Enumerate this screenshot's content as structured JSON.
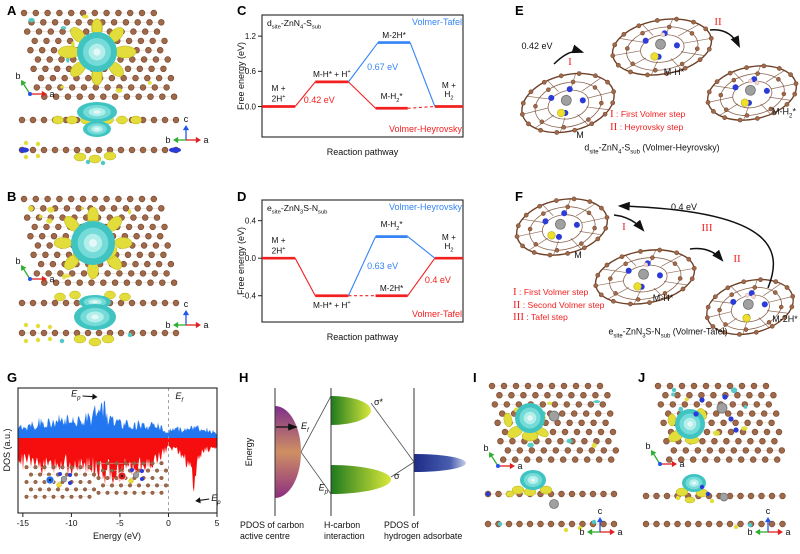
{
  "palette": {
    "red": "#f32020",
    "blue": "#3584f7",
    "dos_up": "#2277f0",
    "dos_down": "#f60d0d",
    "carbon": "#a06a4a",
    "carbon_dark": "#6f4028",
    "nitrogen": "#2a3bd8",
    "sulfur": "#eede2e",
    "zinc": "#a0a0a0",
    "hydrogen": "#f3d7d2",
    "iso_yellow": "#e3dd3b",
    "iso_cyan": "#4fc9c6",
    "axis_a": "#e02020",
    "axis_b": "#2fae2f",
    "axis_c": "#2255ee",
    "highlight_blue": "#1e6ef5",
    "highlight_red": "#e41c1c"
  },
  "axis_labels": {
    "a": "a",
    "b": "b",
    "c": "c"
  },
  "panels": {
    "A": {
      "letter": "A"
    },
    "B": {
      "letter": "B"
    },
    "C": {
      "letter": "C"
    },
    "D": {
      "letter": "D"
    },
    "E": {
      "letter": "E",
      "energy_label": "0.42 eV",
      "step_numerals": [
        "I",
        "II"
      ],
      "mol_labels": [
        "M",
        "M-H*",
        "M-H~2~*"
      ],
      "legend": [
        {
          "num": "I",
          "text": "First Volmer step"
        },
        {
          "num": "II",
          "text": "Heyrovsky step"
        }
      ],
      "caption_rich": "d~site~-ZnN~4~-S~sub~ (Volmer-Heyrovsky)"
    },
    "F": {
      "letter": "F",
      "energy_label": "0.4 eV",
      "step_numerals": [
        "I",
        "II",
        "III"
      ],
      "mol_labels": [
        "M",
        "M-H*",
        "M-2H*"
      ],
      "legend": [
        {
          "num": "I",
          "text": "First Volmer step"
        },
        {
          "num": "II",
          "text": "Second Volmer step"
        },
        {
          "num": "III",
          "text": "Tafel step"
        }
      ],
      "caption_rich": "e~site~-ZnN~3~S-N~sub~ (Volmer-Tafel)"
    },
    "G": {
      "letter": "G"
    },
    "H": {
      "letter": "H",
      "energy_axis_label": "Energy",
      "ef_rich": "E~f~",
      "ep_rich": "E~p~",
      "sigma_star": "σ*",
      "sigma": "σ",
      "col_labels": [
        "PDOS of carbon\nactive centre",
        "H-carbon\ninteraction",
        "PDOS of\nhydrogen adsorbate"
      ]
    },
    "I": {
      "letter": "I"
    },
    "J": {
      "letter": "J"
    }
  },
  "chart_data": [
    {
      "id": "C",
      "type": "line",
      "subtype": "reaction-energy",
      "title_rich": "d~site~-ZnN~4~-S~sub~",
      "xlabel": "Reaction pathway",
      "ylabel": "Free energy (eV)",
      "ylim": [
        -0.52,
        1.56
      ],
      "yticks": [
        {
          "v": 0.0,
          "label": "0.0"
        },
        {
          "v": 0.6,
          "label": "0.6"
        },
        {
          "v": 1.2,
          "label": "1.2"
        }
      ],
      "slots": [
        [
          0.0,
          0.165
        ],
        [
          0.265,
          0.43
        ],
        [
          0.565,
          0.725
        ],
        [
          0.86,
          1.0
        ]
      ],
      "levels": [
        {
          "key": "r0",
          "slot": 0,
          "value": 0.0,
          "color": "red",
          "label": "M +\n2H^+^",
          "lpos": "above"
        },
        {
          "key": "r1",
          "slot": 1,
          "value": 0.42,
          "color": "red",
          "label": "M-H* + H^+^",
          "lpos": "above"
        },
        {
          "key": "r2",
          "slot": 2,
          "value": -0.03,
          "color": "red",
          "label": "M-H~2~*",
          "lpos": "above"
        },
        {
          "key": "b2",
          "slot": 2,
          "value": 1.09,
          "color": "blue",
          "label": "M-2H*",
          "lpos": "above",
          "xshift": 0.012
        },
        {
          "key": "r3",
          "slot": 3,
          "value": 0.0,
          "color": "red",
          "label": "M +\nH~2~",
          "lpos": "above"
        }
      ],
      "connections": [
        {
          "from": "r0",
          "to": "r1",
          "color": "red",
          "style": "solid"
        },
        {
          "from": "r1",
          "to": "r2",
          "color": "red",
          "style": "solid"
        },
        {
          "from": "r2",
          "to": "r3",
          "color": "red",
          "style": "dashed"
        },
        {
          "from": "r1",
          "to": "b2",
          "color": "blue",
          "style": "solid"
        },
        {
          "from": "b2",
          "to": "r3",
          "color": "blue",
          "style": "solid"
        }
      ],
      "annotations": [
        {
          "text": "0.42 eV",
          "color": "red",
          "x": 0.285,
          "y": 0.7
        },
        {
          "text": "0.67 eV",
          "color": "blue",
          "x": 0.6,
          "y": 0.43
        },
        {
          "text": "Volmer-Tafel",
          "color": "blue",
          "x": 0.995,
          "y": 0.055,
          "anchor": "end"
        },
        {
          "text": "Volmer-Heyrovsky",
          "color": "red",
          "x": 0.995,
          "y": 0.935,
          "anchor": "end"
        }
      ]
    },
    {
      "id": "D",
      "type": "line",
      "subtype": "reaction-energy",
      "title_rich": "e~site~-ZnN~3~S-N~sub~",
      "xlabel": "Reaction pathway",
      "ylabel": "Free energy (eV)",
      "ylim": [
        -0.68,
        0.62
      ],
      "yticks": [
        {
          "v": -0.4,
          "label": "-0.4"
        },
        {
          "v": 0.0,
          "label": "0.0"
        },
        {
          "v": 0.4,
          "label": "0.4"
        }
      ],
      "slots": [
        [
          0.0,
          0.165
        ],
        [
          0.265,
          0.43
        ],
        [
          0.565,
          0.725
        ],
        [
          0.86,
          1.0
        ]
      ],
      "levels": [
        {
          "key": "r0",
          "slot": 0,
          "value": 0.0,
          "color": "red",
          "label": "M +\n2H^+^",
          "lpos": "above"
        },
        {
          "key": "r1",
          "slot": 1,
          "value": -0.4,
          "color": "red",
          "label": "M-H* + H^+^",
          "lpos": "below"
        },
        {
          "key": "b2",
          "slot": 2,
          "value": 0.23,
          "color": "blue",
          "label": "M-H~2~*",
          "lpos": "above"
        },
        {
          "key": "r2",
          "slot": 2,
          "value": -0.4,
          "color": "red",
          "label": "M-2H*",
          "lpos": "above"
        },
        {
          "key": "r3",
          "slot": 3,
          "value": 0.0,
          "color": "red",
          "label": "M +\nH~2~",
          "lpos": "above"
        }
      ],
      "connections": [
        {
          "from": "r0",
          "to": "r1",
          "color": "red",
          "style": "solid"
        },
        {
          "from": "r1",
          "to": "r2",
          "color": "red",
          "style": "dashed"
        },
        {
          "from": "r2",
          "to": "r3",
          "color": "red",
          "style": "solid"
        },
        {
          "from": "r1",
          "to": "b2",
          "color": "blue",
          "style": "solid"
        },
        {
          "from": "b2",
          "to": "r3",
          "color": "blue",
          "style": "solid"
        }
      ],
      "annotations": [
        {
          "text": "0.63 eV",
          "color": "blue",
          "x": 0.6,
          "y": 0.545
        },
        {
          "text": "0.4 eV",
          "color": "red",
          "x": 0.875,
          "y": 0.655
        },
        {
          "text": "Volmer-Heyrovsky",
          "color": "blue",
          "x": 0.995,
          "y": 0.055,
          "anchor": "end"
        },
        {
          "text": "Volmer-Tafel",
          "color": "red",
          "x": 0.995,
          "y": 0.935,
          "anchor": "end"
        }
      ]
    },
    {
      "id": "G",
      "type": "area",
      "subtype": "dos",
      "xlabel": "Energy (eV)",
      "ylabel": "DOS (a.u.)",
      "xlim": [
        -15.5,
        5
      ],
      "xticks": [
        -15,
        -10,
        -5,
        0,
        5
      ],
      "fermi_x": 0,
      "annotations": [
        {
          "text_rich": "E~p~",
          "x": -7.1,
          "pos": "top"
        },
        {
          "text_rich": "E~f~",
          "x": 0.4,
          "pos": "fermi"
        },
        {
          "text_rich": "E~p~",
          "x": 2.55,
          "pos": "bottom"
        }
      ],
      "series": [
        {
          "name": "spin-up",
          "direction": "up",
          "color": "#2277f0",
          "points": [
            [
              -15.5,
              0.22
            ],
            [
              -15.1,
              0.38
            ],
            [
              -14.6,
              0.3
            ],
            [
              -14.2,
              0.52
            ],
            [
              -13.8,
              0.34
            ],
            [
              -13.3,
              0.5
            ],
            [
              -12.8,
              0.42
            ],
            [
              -12.3,
              0.52
            ],
            [
              -11.8,
              0.4
            ],
            [
              -11.3,
              0.52
            ],
            [
              -10.8,
              0.46
            ],
            [
              -10.3,
              0.56
            ],
            [
              -9.8,
              0.46
            ],
            [
              -9.3,
              0.58
            ],
            [
              -8.8,
              0.52
            ],
            [
              -8.4,
              0.64
            ],
            [
              -8.0,
              0.56
            ],
            [
              -7.6,
              0.78
            ],
            [
              -7.25,
              0.95
            ],
            [
              -6.9,
              0.8
            ],
            [
              -6.6,
              0.88
            ],
            [
              -6.3,
              0.62
            ],
            [
              -6.0,
              0.56
            ],
            [
              -5.5,
              0.5
            ],
            [
              -5.0,
              0.46
            ],
            [
              -4.5,
              0.42
            ],
            [
              -4.0,
              0.44
            ],
            [
              -3.5,
              0.38
            ],
            [
              -3.0,
              0.4
            ],
            [
              -2.5,
              0.34
            ],
            [
              -2.0,
              0.32
            ],
            [
              -1.5,
              0.38
            ],
            [
              -1.0,
              0.34
            ],
            [
              -0.6,
              0.28
            ],
            [
              -0.2,
              0.2
            ],
            [
              0.0,
              0.16
            ],
            [
              0.3,
              0.28
            ],
            [
              0.7,
              0.22
            ],
            [
              1.1,
              0.28
            ],
            [
              1.5,
              0.22
            ],
            [
              2.0,
              0.3
            ],
            [
              2.5,
              0.26
            ],
            [
              3.0,
              0.3
            ],
            [
              3.5,
              0.24
            ],
            [
              4.0,
              0.26
            ],
            [
              4.5,
              0.2
            ],
            [
              5.0,
              0.16
            ]
          ]
        },
        {
          "name": "spin-down",
          "direction": "down",
          "color": "#f60d0d",
          "points": [
            [
              -15.5,
              0.4
            ],
            [
              -15.0,
              0.55
            ],
            [
              -14.5,
              0.45
            ],
            [
              -14.0,
              0.55
            ],
            [
              -13.5,
              0.48
            ],
            [
              -13.0,
              0.58
            ],
            [
              -12.5,
              0.5
            ],
            [
              -12.0,
              0.6
            ],
            [
              -11.5,
              0.52
            ],
            [
              -11.0,
              0.58
            ],
            [
              -10.5,
              0.52
            ],
            [
              -10.0,
              0.62
            ],
            [
              -9.5,
              0.55
            ],
            [
              -9.0,
              0.62
            ],
            [
              -8.5,
              0.58
            ],
            [
              -8.0,
              0.64
            ],
            [
              -7.5,
              0.6
            ],
            [
              -7.0,
              0.7
            ],
            [
              -6.6,
              0.78
            ],
            [
              -6.2,
              0.66
            ],
            [
              -5.8,
              0.74
            ],
            [
              -5.4,
              0.68
            ],
            [
              -5.0,
              0.76
            ],
            [
              -4.6,
              0.66
            ],
            [
              -4.2,
              0.62
            ],
            [
              -3.8,
              0.68
            ],
            [
              -3.4,
              0.62
            ],
            [
              -3.0,
              0.58
            ],
            [
              -2.5,
              0.54
            ],
            [
              -2.0,
              0.5
            ],
            [
              -1.5,
              0.44
            ],
            [
              -1.0,
              0.4
            ],
            [
              -0.5,
              0.32
            ],
            [
              -0.1,
              0.18
            ],
            [
              0.1,
              0.12
            ],
            [
              0.5,
              0.24
            ],
            [
              1.0,
              0.3
            ],
            [
              1.5,
              0.4
            ],
            [
              2.0,
              0.58
            ],
            [
              2.3,
              0.86
            ],
            [
              2.55,
              1.0
            ],
            [
              2.8,
              0.66
            ],
            [
              3.1,
              0.36
            ],
            [
              3.5,
              0.3
            ],
            [
              4.0,
              0.26
            ],
            [
              4.5,
              0.22
            ],
            [
              5.0,
              0.18
            ]
          ]
        }
      ]
    }
  ]
}
